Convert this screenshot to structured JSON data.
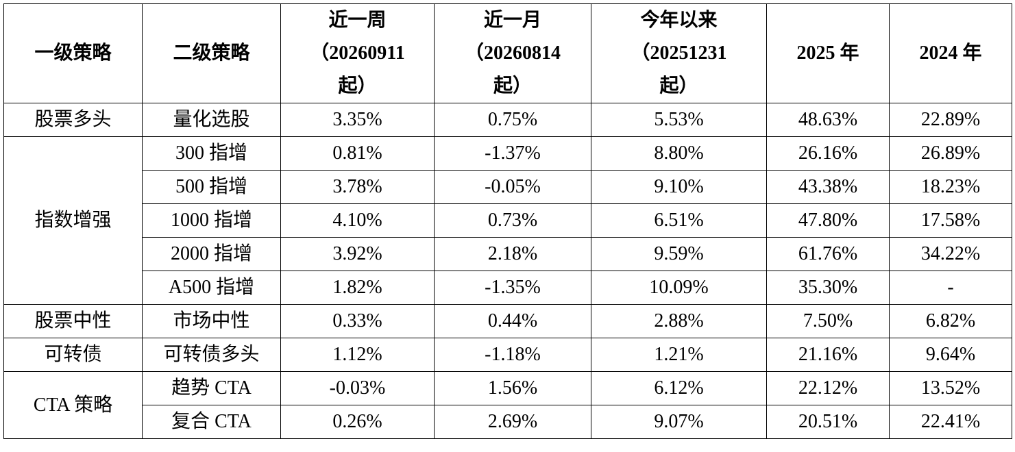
{
  "table": {
    "header": [
      "一级策略",
      "二级策略",
      "近一周\n（20260911\n起）",
      "近一月\n（20260814\n起）",
      "今年以来\n（20251231\n起）",
      "2025 年",
      "2024 年"
    ],
    "groups": [
      {
        "name": "股票多头",
        "rows": [
          [
            "量化选股",
            "3.35%",
            "0.75%",
            "5.53%",
            "48.63%",
            "22.89%"
          ]
        ]
      },
      {
        "name": "指数增强",
        "rows": [
          [
            "300 指增",
            "0.81%",
            "-1.37%",
            "8.80%",
            "26.16%",
            "26.89%"
          ],
          [
            "500 指增",
            "3.78%",
            "-0.05%",
            "9.10%",
            "43.38%",
            "18.23%"
          ],
          [
            "1000 指增",
            "4.10%",
            "0.73%",
            "6.51%",
            "47.80%",
            "17.58%"
          ],
          [
            "2000 指增",
            "3.92%",
            "2.18%",
            "9.59%",
            "61.76%",
            "34.22%"
          ],
          [
            "A500 指增",
            "1.82%",
            "-1.35%",
            "10.09%",
            "35.30%",
            "-"
          ]
        ]
      },
      {
        "name": "股票中性",
        "rows": [
          [
            "市场中性",
            "0.33%",
            "0.44%",
            "2.88%",
            "7.50%",
            "6.82%"
          ]
        ]
      },
      {
        "name": "可转债",
        "rows": [
          [
            "可转债多头",
            "1.12%",
            "-1.18%",
            "1.21%",
            "21.16%",
            "9.64%"
          ]
        ]
      },
      {
        "name": "CTA 策略",
        "rows": [
          [
            "趋势 CTA",
            "-0.03%",
            "1.56%",
            "6.12%",
            "22.12%",
            "13.52%"
          ],
          [
            "复合 CTA",
            "0.26%",
            "2.69%",
            "9.07%",
            "20.51%",
            "22.41%"
          ]
        ]
      }
    ]
  }
}
